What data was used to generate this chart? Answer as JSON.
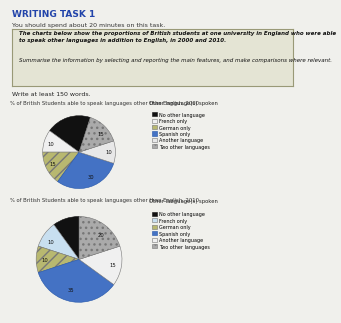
{
  "title1": "% of British Students able to speak languages other than English, 2000",
  "title2": "% of British Students able to speak languages other than English, 2010",
  "task_title": "WRITING TASK 1",
  "task_subtitle": "You should spend about 20 minutes on this task.",
  "prompt_bold": "The charts below show the proportions of British students at one university in England who were able to speak other languages in addition to English, in 2000 and 2010.",
  "prompt_normal": "Summarise the information by selecting and reporting the main features, and make comparisons where relevant.",
  "write_note": "Write at least 150 words.",
  "legend_title": "Other language(s) spoken",
  "legend_labels": [
    "No other language",
    "French only",
    "German only",
    "Spanish only",
    "Another language",
    "Two other languages"
  ],
  "colors_2000": [
    "#111111",
    "#f0f0f0",
    "#b8b870",
    "#4472c4",
    "#e8e8e8",
    "#aaaaaa"
  ],
  "colors_2010": [
    "#111111",
    "#c8dff0",
    "#b8b870",
    "#4472c4",
    "#f0f0f0",
    "#aaaaaa"
  ],
  "hatches_2000": [
    "",
    "",
    "///",
    "",
    "",
    "..."
  ],
  "hatches_2010": [
    "",
    "",
    "///",
    "",
    "",
    "..."
  ],
  "edgecolors": [
    "#111111",
    "#777777",
    "#777777",
    "#2255aa",
    "#777777",
    "#777777"
  ],
  "values_2000": [
    20,
    10,
    15,
    30,
    10,
    15
  ],
  "values_2010": [
    10,
    10,
    10,
    35,
    15,
    20
  ],
  "startangle_2000": 72,
  "startangle_2010": 90,
  "bg_color": "#f0f0ec",
  "box_facecolor": "#e4e4d4",
  "box_edgecolor": "#999977"
}
